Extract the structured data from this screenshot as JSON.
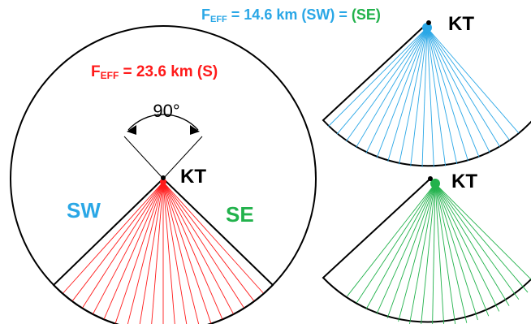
{
  "colors": {
    "red": "#ff1a1a",
    "blue": "#2aa7e6",
    "green": "#22b24c",
    "black": "#000000"
  },
  "labels": {
    "feff_main": {
      "prefix": "F",
      "sub": "EFF",
      "text": " = 23.6 km (S)"
    },
    "feff_side": {
      "prefix": "F",
      "sub": "EFF",
      "text1": " = 14.6 km (SW) = ",
      "text2": "(SE)"
    },
    "angle": "90°",
    "kt_main": "KT",
    "kt_top": "KT",
    "kt_bottom": "KT",
    "sw": "SW",
    "se": "SE"
  },
  "fans": {
    "main_rays": 19,
    "blue_rays": 19,
    "green_rays": 19
  }
}
